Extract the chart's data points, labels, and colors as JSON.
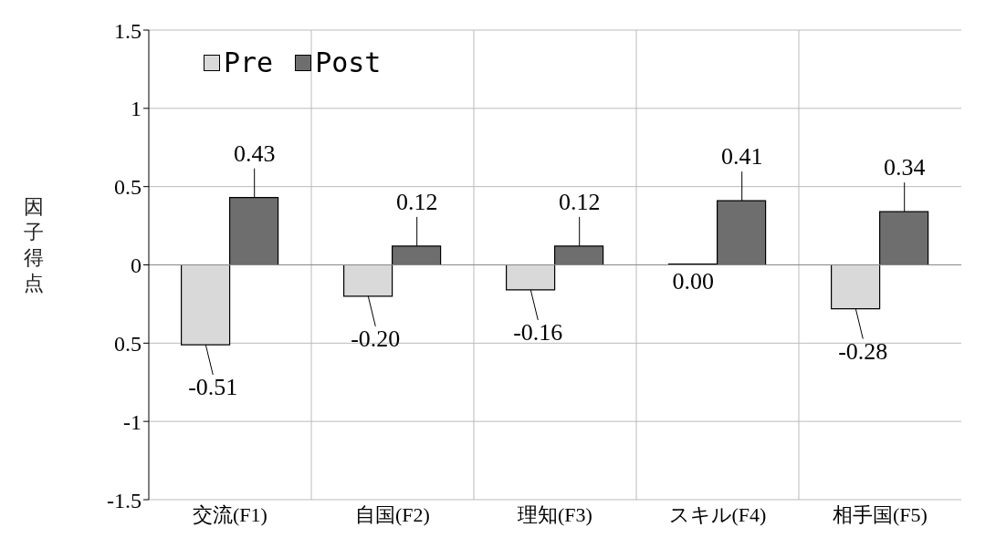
{
  "chart_data": {
    "type": "bar",
    "ylabel": "因子得点",
    "categories": [
      "交流(F1)",
      "自国(F2)",
      "理知(F3)",
      "スキル(F4)",
      "相手国(F5)"
    ],
    "series": [
      {
        "name": "Pre",
        "color": "#d9d9d9",
        "values": [
          -0.51,
          -0.2,
          -0.16,
          0,
          -0.28
        ],
        "value_labels": [
          "-0.51",
          "-0.20",
          "-0.16",
          "0.00",
          "-0.28"
        ]
      },
      {
        "name": "Post",
        "color": "#6e6e6e",
        "values": [
          0.43,
          0.12,
          0.12,
          0.41,
          0.34
        ],
        "value_labels": [
          "0.43",
          "0.12",
          "0.12",
          "0.41",
          "0.34"
        ]
      }
    ],
    "ylim": [
      -1.5,
      1.5
    ],
    "yticks": [
      -1.5,
      -1,
      {
        "value": -0.5,
        "label": "0.5"
      },
      0,
      0.5,
      1,
      1.5
    ],
    "grid": true,
    "legend": "top left"
  }
}
